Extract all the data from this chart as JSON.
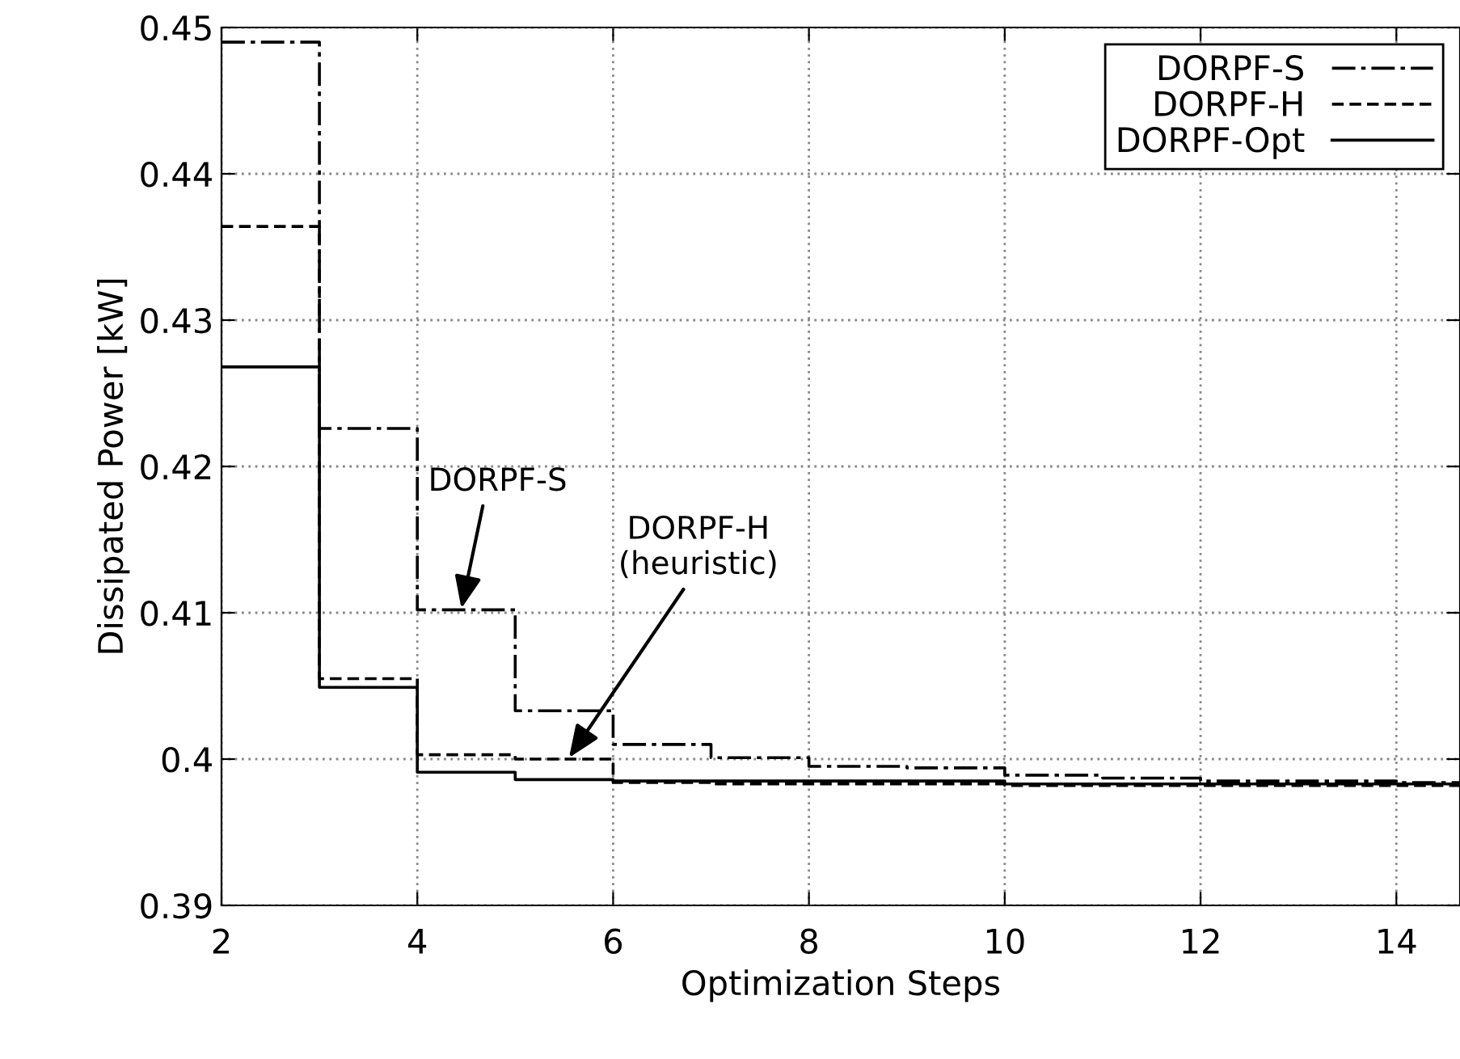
{
  "chart_data": {
    "type": "step",
    "xlabel": "Optimization Steps",
    "ylabel": "Dissipated Power [kW]",
    "x": [
      2,
      3,
      4,
      5,
      6,
      7,
      8,
      9,
      10,
      11,
      12,
      13,
      14,
      14.65
    ],
    "series": [
      {
        "name": "DORPF-S",
        "color": "#000000",
        "line_style": "dashdot",
        "values": [
          0.449,
          0.4226,
          0.4102,
          0.4033,
          0.401,
          0.4001,
          0.3995,
          0.3994,
          0.3989,
          0.3987,
          0.3985,
          0.3985,
          0.3984,
          0.3984
        ]
      },
      {
        "name": "DORPF-H",
        "color": "#000000",
        "line_style": "dashed",
        "values": [
          0.4364,
          0.4055,
          0.4003,
          0.4,
          0.3984,
          0.3983,
          0.3983,
          0.3983,
          0.3982,
          0.3982,
          0.3982,
          0.3982,
          0.3982,
          0.3982
        ]
      },
      {
        "name": "DORPF-Opt",
        "color": "#000000",
        "line_style": "solid",
        "values": [
          0.4268,
          0.4049,
          0.3991,
          0.3986,
          0.3985,
          0.3985,
          0.3985,
          0.3985,
          0.3983,
          0.3983,
          0.3983,
          0.3983,
          0.3983,
          0.3983
        ]
      }
    ],
    "xlim": [
      2,
      14.65
    ],
    "ylim": [
      0.39,
      0.45
    ],
    "xticks": [
      2,
      4,
      6,
      8,
      10,
      12,
      14
    ],
    "yticks": [
      0.39,
      0.4,
      0.41,
      0.42,
      0.43,
      0.44,
      0.45
    ],
    "grid": true,
    "legend": "top right",
    "annotations": [
      {
        "text": "DORPF-S",
        "x": 4.45,
        "y": 0.4103
      },
      {
        "text": "DORPF-H\n(heuristic)",
        "x": 5.55,
        "y": 0.4001
      }
    ]
  }
}
